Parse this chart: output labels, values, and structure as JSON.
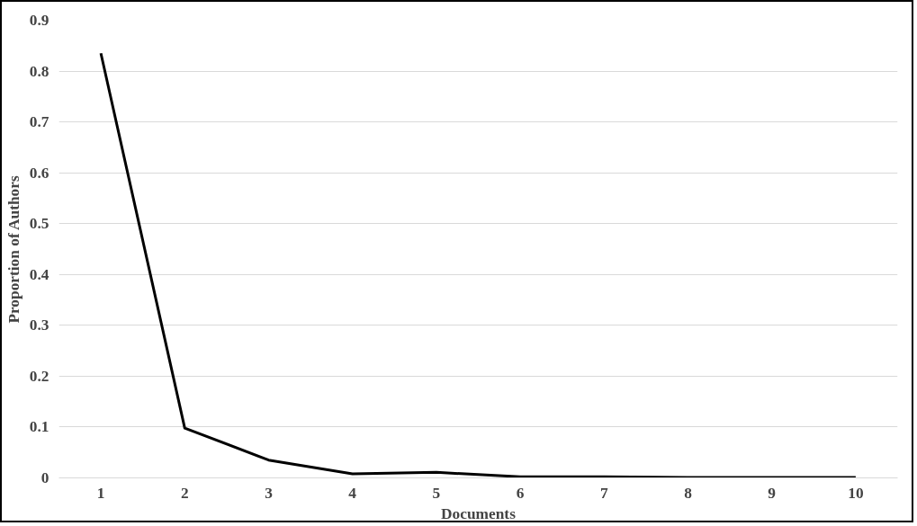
{
  "chart_data": {
    "type": "line",
    "categories": [
      "1",
      "2",
      "3",
      "4",
      "5",
      "6",
      "7",
      "8",
      "9",
      "10"
    ],
    "series": [
      {
        "color": "#000000",
        "values": [
          0.835,
          0.098,
          0.035,
          0.008,
          0.011,
          0.002,
          0.002,
          0.001,
          0.001,
          0.001
        ]
      }
    ],
    "xlabel": "Documents",
    "ylabel": "Proportion of Authors",
    "ylim": [
      0,
      0.9
    ],
    "yticks": [
      0,
      0.1,
      0.2,
      0.3,
      0.4,
      0.5,
      0.6,
      0.7,
      0.8,
      0.9
    ],
    "grid": "y",
    "marker": "none",
    "line_style": "solid"
  }
}
